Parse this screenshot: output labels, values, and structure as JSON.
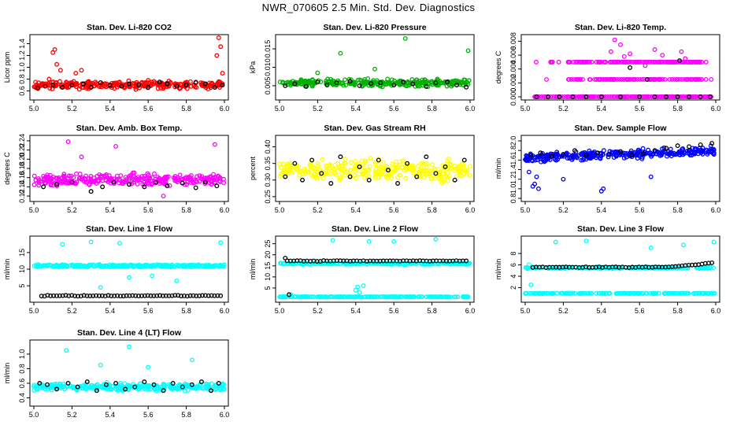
{
  "page_title": "NWR_070605  2.5 Min. Std. Dev. Diagnostics",
  "chart_data": [
    {
      "type": "scatter",
      "title": "Stan. Dev. Li-820 CO2",
      "ylabel": "Licor ppm",
      "xlim": [
        5.0,
        6.0
      ],
      "ylim": [
        0.5,
        1.5
      ],
      "xticks": [
        5.0,
        5.2,
        5.4,
        5.6,
        5.8,
        6.0
      ],
      "xtick_labels": [
        "5.0",
        "5.2",
        "5.4",
        "5.6",
        "5.8",
        "6.0"
      ],
      "yticks": [
        0.6,
        0.8,
        1.0,
        1.2,
        1.4
      ],
      "ytick_labels": [
        "0.6",
        "0.8",
        "1.0",
        "1.2",
        "1.4"
      ],
      "series": [
        {
          "name": "main",
          "color": "#ff0000",
          "x": [
            5.02,
            5.05,
            5.08,
            5.1,
            5.11,
            5.12,
            5.14,
            5.17,
            5.2,
            5.22,
            5.25,
            5.3,
            5.35,
            5.4,
            5.45,
            5.5,
            5.55,
            5.6,
            5.65,
            5.7,
            5.75,
            5.8,
            5.85,
            5.9,
            5.93,
            5.96,
            5.97,
            5.98,
            5.99
          ],
          "y": [
            0.68,
            0.72,
            0.8,
            1.25,
            1.3,
            1.05,
            0.95,
            0.75,
            0.7,
            0.9,
            0.95,
            0.72,
            0.7,
            0.68,
            0.75,
            0.7,
            0.72,
            0.78,
            0.7,
            0.72,
            0.68,
            0.7,
            0.75,
            0.7,
            0.72,
            1.2,
            1.5,
            1.35,
            0.9
          ],
          "base": 0.7,
          "spread": 0.09,
          "n": 280
        },
        {
          "name": "reference",
          "color": "#000000",
          "x": [
            5.02,
            5.06,
            5.1,
            5.15,
            5.2,
            5.26,
            5.3,
            5.35,
            5.4,
            5.46,
            5.5,
            5.55,
            5.6,
            5.66,
            5.7,
            5.75,
            5.8,
            5.85,
            5.9,
            5.95,
            5.99
          ],
          "y": [
            0.65,
            0.68,
            0.7,
            0.66,
            0.7,
            0.72,
            0.66,
            0.74,
            0.7,
            0.68,
            0.72,
            0.7,
            0.66,
            0.75,
            0.72,
            0.68,
            0.7,
            0.74,
            0.72,
            0.66,
            0.7
          ]
        }
      ]
    },
    {
      "type": "scatter",
      "title": "Stan. Dev. Li-820 Pressure",
      "ylabel": "kPa",
      "xlim": [
        5.0,
        6.0
      ],
      "ylim": [
        0.002,
        0.018
      ],
      "xticks": [
        5.0,
        5.2,
        5.4,
        5.6,
        5.8,
        6.0
      ],
      "xtick_labels": [
        "5.0",
        "5.2",
        "5.4",
        "5.6",
        "5.8",
        "6.0"
      ],
      "yticks": [
        0.005,
        0.01,
        0.015
      ],
      "ytick_labels": [
        "0.005",
        "0.010",
        "0.015"
      ],
      "series": [
        {
          "name": "main",
          "color": "#00b000",
          "x": [
            5.32,
            5.66,
            5.99,
            5.5,
            5.2
          ],
          "y": [
            0.0138,
            0.0178,
            0.0145,
            0.0095,
            0.0085
          ],
          "base": 0.0058,
          "spread": 0.0013,
          "n": 280
        },
        {
          "name": "reference",
          "color": "#000000",
          "x": [
            5.03,
            5.08,
            5.14,
            5.2,
            5.25,
            5.3,
            5.37,
            5.42,
            5.48,
            5.53,
            5.6,
            5.65,
            5.7,
            5.77,
            5.82,
            5.88,
            5.93,
            5.98
          ],
          "y": [
            0.005,
            0.0055,
            0.0048,
            0.006,
            0.0052,
            0.0058,
            0.0062,
            0.005,
            0.0056,
            0.0058,
            0.0052,
            0.006,
            0.0055,
            0.0048,
            0.0058,
            0.006,
            0.0052,
            0.0046
          ]
        }
      ]
    },
    {
      "type": "scatter",
      "title": "Stan. Dev. Li-820 Temp.",
      "ylabel": "degrees C",
      "xlim": [
        5.0,
        6.0
      ],
      "ylim": [
        0,
        0.0085
      ],
      "xticks": [
        5.0,
        5.2,
        5.4,
        5.6,
        5.8,
        6.0
      ],
      "xtick_labels": [
        "5.0",
        "5.2",
        "5.4",
        "5.6",
        "5.8",
        "6.0"
      ],
      "yticks": [
        0,
        0.002,
        0.004,
        0.006,
        0.008
      ],
      "ytick_labels": [
        "0.000",
        "0.002",
        "0.004",
        "0.006",
        "0.008"
      ],
      "series": [
        {
          "name": "main",
          "color": "#ff00ff",
          "levels": [
            0.0,
            0.0025,
            0.005
          ],
          "x_from": 5.05,
          "x_to": 5.98,
          "n": 240,
          "x": [
            5.45,
            5.5,
            5.55,
            5.68,
            5.72,
            5.82,
            5.84,
            5.47,
            5.52,
            5.63
          ],
          "y": [
            0.0065,
            0.0075,
            0.0062,
            0.0068,
            0.006,
            0.0065,
            0.0055,
            0.0082,
            0.0058,
            0.0045
          ]
        },
        {
          "name": "reference",
          "color": "#000000",
          "x": [
            5.06,
            5.12,
            5.18,
            5.25,
            5.32,
            5.4,
            5.5,
            5.6,
            5.68,
            5.74,
            5.8,
            5.86,
            5.92,
            5.97,
            5.55,
            5.81,
            5.64
          ],
          "y": [
            0,
            0,
            0,
            0,
            0,
            0,
            0,
            0,
            0,
            0,
            0,
            0,
            0,
            0,
            0.0042,
            0.0052,
            0.0025
          ]
        }
      ]
    },
    {
      "type": "scatter",
      "title": "Stan. Dev. Amb. Box Temp.",
      "ylabel": "degrees C",
      "xlim": [
        5.0,
        6.0
      ],
      "ylim": [
        0.115,
        0.245
      ],
      "xticks": [
        5.0,
        5.2,
        5.4,
        5.6,
        5.8,
        6.0
      ],
      "xtick_labels": [
        "5.0",
        "5.2",
        "5.4",
        "5.6",
        "5.8",
        "6.0"
      ],
      "yticks": [
        0.12,
        0.14,
        0.16,
        0.18,
        0.2,
        0.22,
        0.24
      ],
      "ytick_labels": [
        "0.12",
        "0.14",
        "0.16",
        "0.18",
        "0.20",
        "0.22",
        "0.24"
      ],
      "series": [
        {
          "name": "main",
          "color": "#ff00ff",
          "x": [
            5.18,
            5.43,
            5.95,
            5.68,
            5.25
          ],
          "y": [
            0.238,
            0.228,
            0.232,
            0.12,
            0.205
          ],
          "base": 0.155,
          "spread": 0.018,
          "n": 300
        },
        {
          "name": "reference",
          "color": "#000000",
          "x": [
            5.05,
            5.12,
            5.2,
            5.3,
            5.36,
            5.42,
            5.5,
            5.58,
            5.64,
            5.7,
            5.78,
            5.85,
            5.9,
            5.96
          ],
          "y": [
            0.14,
            0.145,
            0.15,
            0.13,
            0.14,
            0.15,
            0.145,
            0.14,
            0.15,
            0.142,
            0.148,
            0.138,
            0.15,
            0.142
          ]
        }
      ]
    },
    {
      "type": "scatter",
      "title": "Stan. Dev. Gas Stream RH",
      "ylabel": "percent",
      "xlim": [
        5.0,
        6.0
      ],
      "ylim": [
        0.245,
        0.425
      ],
      "xticks": [
        5.0,
        5.2,
        5.4,
        5.6,
        5.8,
        6.0
      ],
      "xtick_labels": [
        "5.0",
        "5.2",
        "5.4",
        "5.6",
        "5.8",
        "6.0"
      ],
      "yticks": [
        0.25,
        0.3,
        0.35,
        0.4
      ],
      "ytick_labels": [
        "0.25",
        "0.30",
        "0.35",
        "0.40"
      ],
      "series": [
        {
          "name": "main",
          "color": "#ffff00",
          "base": 0.33,
          "spread": 0.045,
          "n": 320
        },
        {
          "name": "reference",
          "color": "#000000",
          "x": [
            5.03,
            5.08,
            5.12,
            5.17,
            5.22,
            5.27,
            5.32,
            5.37,
            5.42,
            5.47,
            5.52,
            5.57,
            5.62,
            5.67,
            5.72,
            5.77,
            5.82,
            5.87,
            5.92,
            5.97
          ],
          "y": [
            0.31,
            0.35,
            0.3,
            0.36,
            0.32,
            0.29,
            0.37,
            0.31,
            0.34,
            0.3,
            0.36,
            0.33,
            0.29,
            0.35,
            0.31,
            0.37,
            0.32,
            0.34,
            0.3,
            0.36
          ]
        }
      ]
    },
    {
      "type": "scatter",
      "title": "Stan. Dev. Sample Flow",
      "ylabel": "ml/min",
      "xlim": [
        5.0,
        6.0
      ],
      "ylim": [
        0.8,
        2.05
      ],
      "xticks": [
        5.0,
        5.2,
        5.4,
        5.6,
        5.8,
        6.0
      ],
      "xtick_labels": [
        "5.0",
        "5.2",
        "5.4",
        "5.6",
        "5.8",
        "6.0"
      ],
      "yticks": [
        0.8,
        1.0,
        1.2,
        1.4,
        1.6,
        1.8,
        2.0
      ],
      "ytick_labels": [
        "0.8",
        "1.0",
        "1.2",
        "1.4",
        "1.6",
        "1.8",
        "2.0"
      ],
      "series": [
        {
          "name": "main",
          "color": "#0000ff",
          "x": [
            5.04,
            5.05,
            5.06,
            5.07,
            5.4,
            5.41,
            5.2,
            5.66,
            5.02
          ],
          "y": [
            1.05,
            1.1,
            1.25,
            1.0,
            0.95,
            1.0,
            1.2,
            1.25,
            1.35
          ],
          "base": 1.72,
          "spread": 0.13,
          "n": 320,
          "trend": 0.15
        },
        {
          "name": "reference",
          "color": "#000000",
          "x": [
            5.03,
            5.08,
            5.14,
            5.2,
            5.26,
            5.32,
            5.38,
            5.44,
            5.5,
            5.56,
            5.62,
            5.68,
            5.74,
            5.8,
            5.86,
            5.92,
            5.98
          ],
          "y": [
            1.7,
            1.75,
            1.68,
            1.72,
            1.8,
            1.7,
            1.75,
            1.72,
            1.78,
            1.7,
            1.74,
            1.8,
            1.85,
            1.9,
            1.88,
            1.92,
            1.95
          ]
        }
      ]
    },
    {
      "type": "scatter",
      "title": "Stan. Dev. Line 1 Flow",
      "ylabel": "ml/min",
      "xlim": [
        5.0,
        6.0
      ],
      "ylim": [
        1.0,
        19.0
      ],
      "xticks": [
        5.0,
        5.2,
        5.4,
        5.6,
        5.8,
        6.0
      ],
      "xtick_labels": [
        "5.0",
        "5.2",
        "5.4",
        "5.6",
        "5.8",
        "6.0"
      ],
      "yticks": [
        5,
        10,
        15
      ],
      "ytick_labels": [
        "5",
        "10",
        "15"
      ],
      "series": [
        {
          "name": "main",
          "color": "#00ffff",
          "x": [
            5.15,
            5.3,
            5.45,
            5.5,
            5.75,
            5.98,
            5.62,
            5.35
          ],
          "y": [
            17.5,
            18.2,
            17.8,
            7.5,
            6.5,
            18.0,
            8.0,
            4.5
          ],
          "base": 11.0,
          "spread": 0.5,
          "n": 280
        },
        {
          "name": "reference",
          "color": "#000000",
          "line_y": 2.0,
          "n": 60
        }
      ]
    },
    {
      "type": "scatter",
      "title": "Stan. Dev. Line 2 Flow",
      "ylabel": "ml/min",
      "xlim": [
        5.0,
        6.0
      ],
      "ylim": [
        0.0,
        27.0
      ],
      "xticks": [
        5.0,
        5.2,
        5.4,
        5.6,
        5.8,
        6.0
      ],
      "xtick_labels": [
        "5.0",
        "5.2",
        "5.4",
        "5.6",
        "5.8",
        "6.0"
      ],
      "yticks": [
        5,
        10,
        15,
        20,
        25
      ],
      "ytick_labels": [
        "5",
        "10",
        "15",
        "20",
        "25"
      ],
      "series": [
        {
          "name": "main",
          "color": "#00ffff",
          "x": [
            5.06,
            5.28,
            5.4,
            5.41,
            5.42,
            5.44,
            5.47,
            5.6,
            5.82
          ],
          "y": [
            2.0,
            26.5,
            4.0,
            5.5,
            3.0,
            6.0,
            26.0,
            26.0,
            27.0
          ],
          "base": 16.0,
          "spread": 0.6,
          "n": 220,
          "baseline": 1.0
        },
        {
          "name": "reference",
          "color": "#000000",
          "line_y": 17.2,
          "n": 55,
          "x_extra": [
            5.03,
            5.05
          ],
          "y_extra": [
            18.5,
            2.0
          ]
        }
      ]
    },
    {
      "type": "scatter",
      "title": "Stan. Dev. Line 3 Flow",
      "ylabel": "ml/min",
      "xlim": [
        5.0,
        6.0
      ],
      "ylim": [
        0.0,
        10.5
      ],
      "xticks": [
        5.0,
        5.2,
        5.4,
        5.6,
        5.8,
        6.0
      ],
      "xtick_labels": [
        "5.0",
        "5.2",
        "5.4",
        "5.6",
        "5.8",
        "6.0"
      ],
      "yticks": [
        2,
        4,
        6,
        8
      ],
      "ytick_labels": [
        "2",
        "4",
        "6",
        "8"
      ],
      "series": [
        {
          "name": "main",
          "color": "#00ffff",
          "x": [
            5.16,
            5.32,
            5.66,
            5.83,
            5.99,
            5.02,
            5.03,
            5.04
          ],
          "y": [
            10.0,
            10.2,
            9.0,
            9.5,
            10.0,
            6.0,
            2.5,
            5.5
          ],
          "base": 5.5,
          "spread": 0.2,
          "n": 180,
          "baseline": 1.0
        },
        {
          "name": "reference",
          "color": "#000000",
          "line_y": 5.6,
          "n": 55,
          "trend": 0.8
        }
      ]
    },
    {
      "type": "scatter",
      "title": "Stan. Dev. Line 4 (LT) Flow",
      "ylabel": "ml/min",
      "xlim": [
        5.0,
        6.0
      ],
      "ylim": [
        0.33,
        1.15
      ],
      "xticks": [
        5.0,
        5.2,
        5.4,
        5.6,
        5.8,
        6.0
      ],
      "xtick_labels": [
        "5.0",
        "5.2",
        "5.4",
        "5.6",
        "5.8",
        "6.0"
      ],
      "yticks": [
        0.4,
        0.6,
        0.8,
        1.0
      ],
      "ytick_labels": [
        "0.4",
        "0.6",
        "0.8",
        "1.0"
      ],
      "series": [
        {
          "name": "main",
          "color": "#00ffff",
          "x": [
            5.17,
            5.5,
            5.83,
            5.35,
            5.6
          ],
          "y": [
            1.05,
            1.1,
            0.92,
            0.85,
            0.82
          ],
          "base": 0.55,
          "spread": 0.07,
          "n": 300
        },
        {
          "name": "reference",
          "color": "#000000",
          "x": [
            5.03,
            5.07,
            5.12,
            5.18,
            5.23,
            5.28,
            5.33,
            5.38,
            5.43,
            5.48,
            5.53,
            5.58,
            5.63,
            5.68,
            5.73,
            5.78,
            5.83,
            5.88,
            5.93,
            5.97
          ],
          "y": [
            0.6,
            0.58,
            0.52,
            0.6,
            0.55,
            0.62,
            0.5,
            0.58,
            0.6,
            0.52,
            0.55,
            0.62,
            0.58,
            0.5,
            0.6,
            0.55,
            0.58,
            0.62,
            0.5,
            0.6
          ]
        }
      ]
    }
  ]
}
